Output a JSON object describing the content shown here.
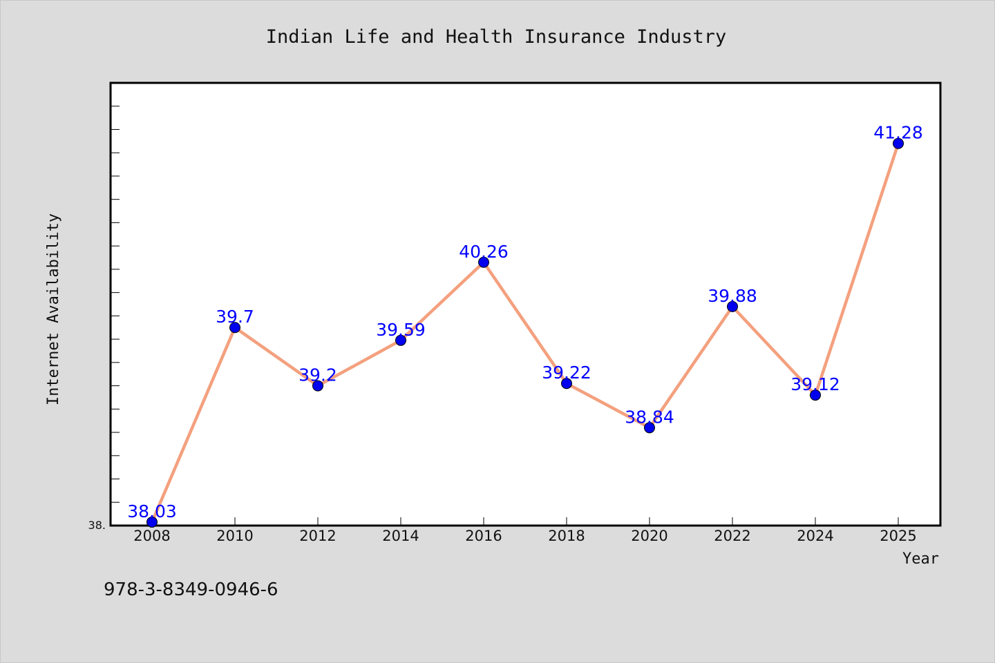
{
  "chart_data": {
    "type": "line",
    "title": "Indian Life and Health Insurance Industry",
    "xlabel": "Year",
    "ylabel": "Internet Availability",
    "categories": [
      "2008",
      "2010",
      "2012",
      "2014",
      "2016",
      "2018",
      "2020",
      "2022",
      "2024",
      "2025"
    ],
    "series": [
      {
        "values": [
          38.03,
          39.7,
          39.2,
          39.59,
          40.26,
          39.22,
          38.84,
          39.88,
          39.12,
          41.28
        ],
        "data_labels": [
          "38.03",
          "39.7",
          "39.2",
          "39.59",
          "40.26",
          "39.22",
          "38.84",
          "39.88",
          "39.12",
          "41.28"
        ],
        "line_color": "#f4a07e",
        "marker_color": "#0000ee"
      }
    ],
    "y_tick_label": "38.",
    "ylim": [
      38.0,
      41.8
    ],
    "grid": false,
    "legend": "none",
    "plot_background": "#ffffff",
    "page_background": "#dcdcdc"
  },
  "footer": {
    "id_text": "978-3-8349-0946-6"
  }
}
